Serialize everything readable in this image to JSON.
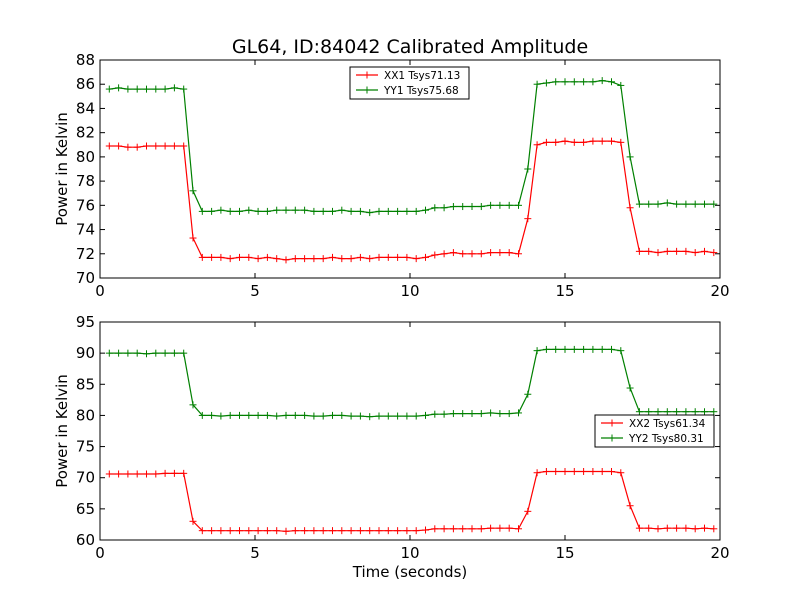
{
  "figure_title": "GL64, ID:84042 Calibrated Amplitude",
  "chart_data": [
    {
      "type": "line",
      "title": "GL64, ID:84042 Calibrated Amplitude",
      "xlabel": "",
      "ylabel": "Power in Kelvin",
      "xlim": [
        0,
        20
      ],
      "ylim": [
        70,
        88
      ],
      "xticks": [
        0,
        5,
        10,
        15,
        20
      ],
      "yticks": [
        70,
        72,
        74,
        76,
        78,
        80,
        82,
        84,
        86,
        88
      ],
      "legend_position": "upper-center",
      "x": [
        0.3,
        0.6,
        0.9,
        1.2,
        1.5,
        1.8,
        2.1,
        2.4,
        2.7,
        3.0,
        3.3,
        3.6,
        3.9,
        4.2,
        4.5,
        4.8,
        5.1,
        5.4,
        5.7,
        6.0,
        6.3,
        6.6,
        6.9,
        7.2,
        7.5,
        7.8,
        8.1,
        8.4,
        8.7,
        9.0,
        9.3,
        9.6,
        9.9,
        10.2,
        10.5,
        10.8,
        11.1,
        11.4,
        11.7,
        12.0,
        12.3,
        12.6,
        12.9,
        13.2,
        13.5,
        13.8,
        14.1,
        14.4,
        14.7,
        15.0,
        15.3,
        15.6,
        15.9,
        16.2,
        16.5,
        16.8,
        17.1,
        17.4,
        17.7,
        18.0,
        18.3,
        18.6,
        18.9,
        19.2,
        19.5,
        19.8
      ],
      "series": [
        {
          "name": "XX1 Tsys71.13",
          "color": "#ff0000",
          "values": [
            80.9,
            80.9,
            80.8,
            80.8,
            80.9,
            80.9,
            80.9,
            80.9,
            80.9,
            73.3,
            71.7,
            71.7,
            71.7,
            71.6,
            71.7,
            71.7,
            71.6,
            71.7,
            71.6,
            71.5,
            71.6,
            71.6,
            71.6,
            71.6,
            71.7,
            71.6,
            71.6,
            71.7,
            71.6,
            71.7,
            71.7,
            71.7,
            71.7,
            71.6,
            71.7,
            71.9,
            72.0,
            72.1,
            72.0,
            72.0,
            72.0,
            72.1,
            72.1,
            72.1,
            72.0,
            74.9,
            81.0,
            81.2,
            81.2,
            81.3,
            81.2,
            81.2,
            81.3,
            81.3,
            81.3,
            81.2,
            75.8,
            72.2,
            72.2,
            72.1,
            72.2,
            72.2,
            72.2,
            72.1,
            72.2,
            72.1
          ]
        },
        {
          "name": "YY1 Tsys75.68",
          "color": "#008000",
          "values": [
            85.6,
            85.7,
            85.6,
            85.6,
            85.6,
            85.6,
            85.6,
            85.7,
            85.6,
            77.2,
            75.5,
            75.5,
            75.6,
            75.5,
            75.5,
            75.6,
            75.5,
            75.5,
            75.6,
            75.6,
            75.6,
            75.6,
            75.5,
            75.5,
            75.5,
            75.6,
            75.5,
            75.5,
            75.4,
            75.5,
            75.5,
            75.5,
            75.5,
            75.5,
            75.6,
            75.8,
            75.8,
            75.9,
            75.9,
            75.9,
            75.9,
            76.0,
            76.0,
            76.0,
            76.0,
            79.0,
            86.0,
            86.1,
            86.2,
            86.2,
            86.2,
            86.2,
            86.2,
            86.3,
            86.2,
            85.9,
            80.0,
            76.1,
            76.1,
            76.1,
            76.2,
            76.1,
            76.1,
            76.1,
            76.1,
            76.1
          ]
        }
      ]
    },
    {
      "type": "line",
      "title": "",
      "xlabel": "Time (seconds)",
      "ylabel": "Power in Kelvin",
      "xlim": [
        0,
        20
      ],
      "ylim": [
        60,
        95
      ],
      "xticks": [
        0,
        5,
        10,
        15,
        20
      ],
      "yticks": [
        60,
        65,
        70,
        75,
        80,
        85,
        90,
        95
      ],
      "legend_position": "center-right",
      "x": [
        0.3,
        0.6,
        0.9,
        1.2,
        1.5,
        1.8,
        2.1,
        2.4,
        2.7,
        3.0,
        3.3,
        3.6,
        3.9,
        4.2,
        4.5,
        4.8,
        5.1,
        5.4,
        5.7,
        6.0,
        6.3,
        6.6,
        6.9,
        7.2,
        7.5,
        7.8,
        8.1,
        8.4,
        8.7,
        9.0,
        9.3,
        9.6,
        9.9,
        10.2,
        10.5,
        10.8,
        11.1,
        11.4,
        11.7,
        12.0,
        12.3,
        12.6,
        12.9,
        13.2,
        13.5,
        13.8,
        14.1,
        14.4,
        14.7,
        15.0,
        15.3,
        15.6,
        15.9,
        16.2,
        16.5,
        16.8,
        17.1,
        17.4,
        17.7,
        18.0,
        18.3,
        18.6,
        18.9,
        19.2,
        19.5,
        19.8
      ],
      "series": [
        {
          "name": "XX2 Tsys61.34",
          "color": "#ff0000",
          "values": [
            70.6,
            70.6,
            70.6,
            70.6,
            70.6,
            70.6,
            70.7,
            70.7,
            70.7,
            63.0,
            61.5,
            61.5,
            61.5,
            61.5,
            61.5,
            61.5,
            61.5,
            61.5,
            61.5,
            61.4,
            61.5,
            61.5,
            61.5,
            61.5,
            61.5,
            61.5,
            61.5,
            61.5,
            61.5,
            61.5,
            61.5,
            61.5,
            61.5,
            61.5,
            61.6,
            61.8,
            61.8,
            61.8,
            61.8,
            61.8,
            61.8,
            61.9,
            61.9,
            61.9,
            61.8,
            64.6,
            70.8,
            71.0,
            71.0,
            71.0,
            71.0,
            71.0,
            71.0,
            71.0,
            71.0,
            70.8,
            65.5,
            61.9,
            61.9,
            61.8,
            61.9,
            61.9,
            61.9,
            61.8,
            61.9,
            61.8
          ]
        },
        {
          "name": "YY2 Tsys80.31",
          "color": "#008000",
          "values": [
            90.0,
            90.0,
            90.0,
            90.0,
            89.9,
            90.0,
            90.0,
            90.0,
            90.0,
            81.7,
            80.0,
            80.0,
            79.9,
            80.0,
            80.0,
            80.0,
            80.0,
            80.0,
            79.9,
            80.0,
            80.0,
            80.0,
            79.9,
            79.9,
            80.0,
            80.0,
            79.9,
            79.9,
            79.8,
            79.9,
            79.9,
            79.9,
            79.9,
            79.9,
            80.0,
            80.2,
            80.2,
            80.3,
            80.3,
            80.3,
            80.3,
            80.4,
            80.3,
            80.3,
            80.4,
            83.4,
            90.4,
            90.6,
            90.6,
            90.6,
            90.6,
            90.6,
            90.6,
            90.6,
            90.6,
            90.4,
            84.4,
            80.6,
            80.6,
            80.6,
            80.6,
            80.6,
            80.6,
            80.6,
            80.6,
            80.6
          ]
        }
      ]
    }
  ]
}
